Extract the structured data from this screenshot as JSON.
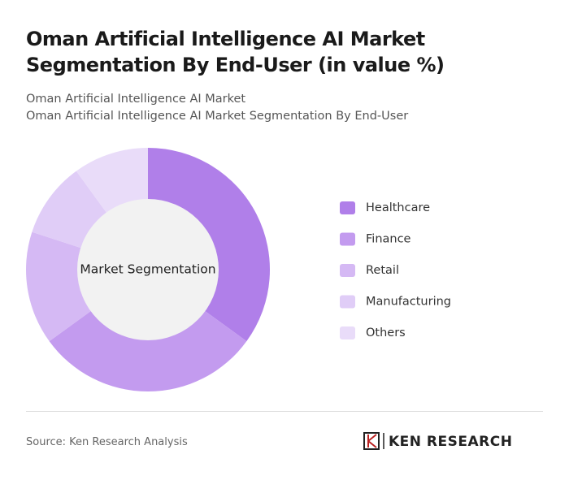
{
  "chart_data": {
    "type": "donut",
    "title": "Oman Artificial Intelligence AI Market Segmentation By End-User (in value %)",
    "subtitle": [
      "Oman Artificial Intelligence AI Market",
      "Oman Artificial Intelligence AI Market Segmentation By End-User"
    ],
    "center_label": "Market Segmentation",
    "categories": [
      "Healthcare",
      "Finance",
      "Retail",
      "Manufacturing",
      "Others"
    ],
    "values": [
      35,
      30,
      15,
      10,
      10
    ],
    "colors": [
      "#b07fe9",
      "#c39bef",
      "#d5b9f4",
      "#e0cdf7",
      "#e9dcf9"
    ],
    "source": "Source: Ken Research Analysis",
    "logo": "KEN RESEARCH"
  }
}
